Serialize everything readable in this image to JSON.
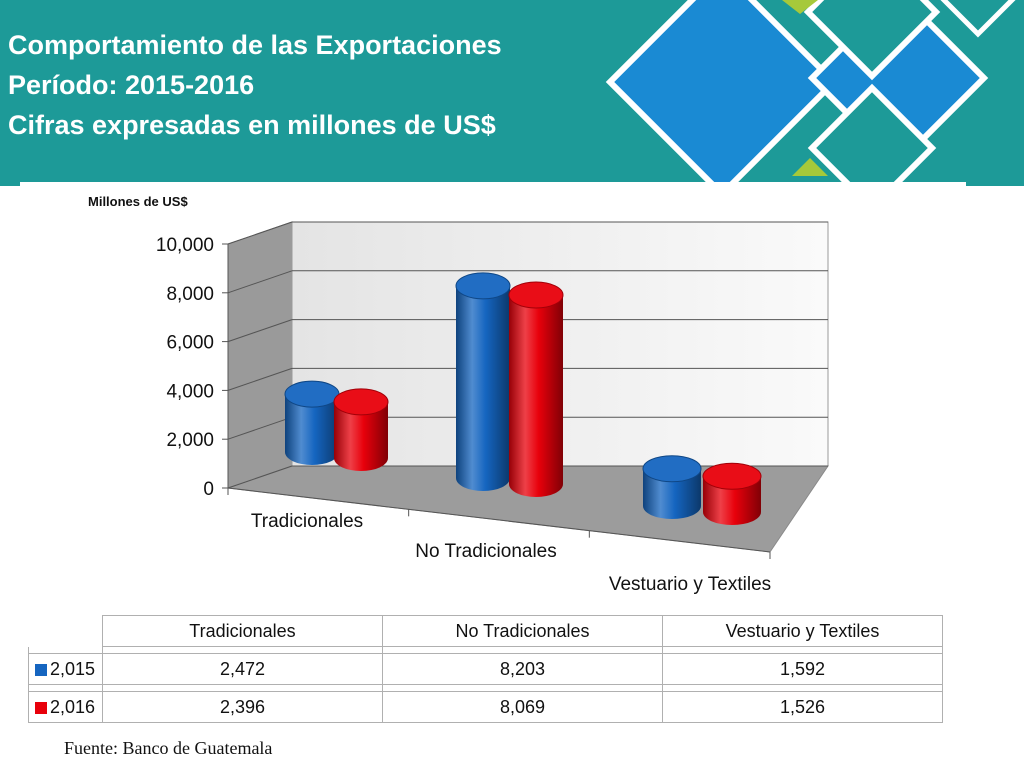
{
  "header": {
    "line1": "Comportamiento de las Exportaciones",
    "line2": "Período: 2015-2016",
    "line3": "Cifras expresadas en millones de US$",
    "bg_color": "#1d9a98"
  },
  "chart_data": {
    "type": "bar",
    "style": "3d-cylinder",
    "ylabel": "Millones de US$",
    "categories": [
      "Tradicionales",
      "No Tradicionales",
      "Vestuario  y Textiles"
    ],
    "series": [
      {
        "name": "2,015",
        "color": "#1565c0",
        "values": [
          2472,
          8203,
          1592
        ]
      },
      {
        "name": "2,016",
        "color": "#e8000b",
        "values": [
          2396,
          8069,
          1526
        ]
      }
    ],
    "ylim": [
      0,
      10000
    ],
    "yticks": [
      0,
      2000,
      4000,
      6000,
      8000,
      10000
    ],
    "ytick_labels": [
      "0",
      "2,000",
      "4,000",
      "6,000",
      "8,000",
      "10,000"
    ],
    "grid": true
  },
  "table": {
    "columns": [
      "Tradicionales",
      "No Tradicionales",
      "Vestuario  y Textiles"
    ],
    "rows": [
      {
        "label": "2,015",
        "color": "#1565c0",
        "values": [
          "2,472",
          "8,203",
          "1,592"
        ]
      },
      {
        "label": "2,016",
        "color": "#e8000b",
        "values": [
          "2,396",
          "8,069",
          "1,526"
        ]
      }
    ]
  },
  "source": "Fuente: Banco de Guatemala"
}
